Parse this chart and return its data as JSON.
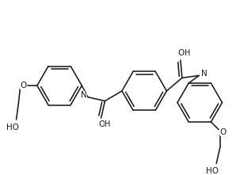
{
  "bg": "#ffffff",
  "lc": "#1a1a1a",
  "lw": 1.15,
  "figsize": [
    3.03,
    2.21
  ],
  "dpi": 100,
  "xlim": [
    0,
    303
  ],
  "ylim": [
    0,
    221
  ]
}
